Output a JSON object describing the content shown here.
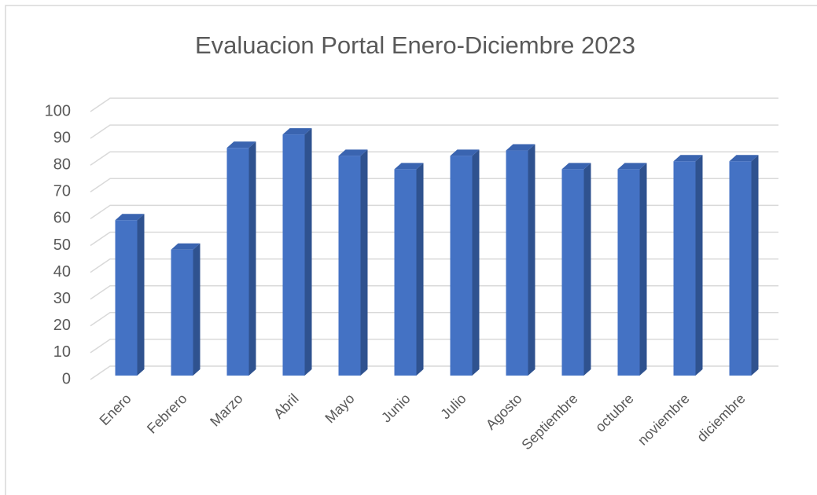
{
  "chart_data": {
    "type": "bar3d",
    "title": "Evaluacion Portal Enero-Diciembre 2023",
    "categories": [
      "Enero",
      "Febrero",
      "Marzo",
      "Abril",
      "Mayo",
      "Junio",
      "Julio",
      "Agosto",
      "Septiembre",
      "octubre",
      "noviembre",
      "diciembre"
    ],
    "values": [
      58,
      47,
      85,
      90,
      82,
      77,
      82,
      84,
      77,
      77,
      80,
      80
    ],
    "color": "#4472c4",
    "ylim": [
      0,
      100
    ],
    "yticks": [
      0,
      10,
      20,
      30,
      40,
      50,
      60,
      70,
      80,
      90,
      100
    ],
    "grid": true
  }
}
